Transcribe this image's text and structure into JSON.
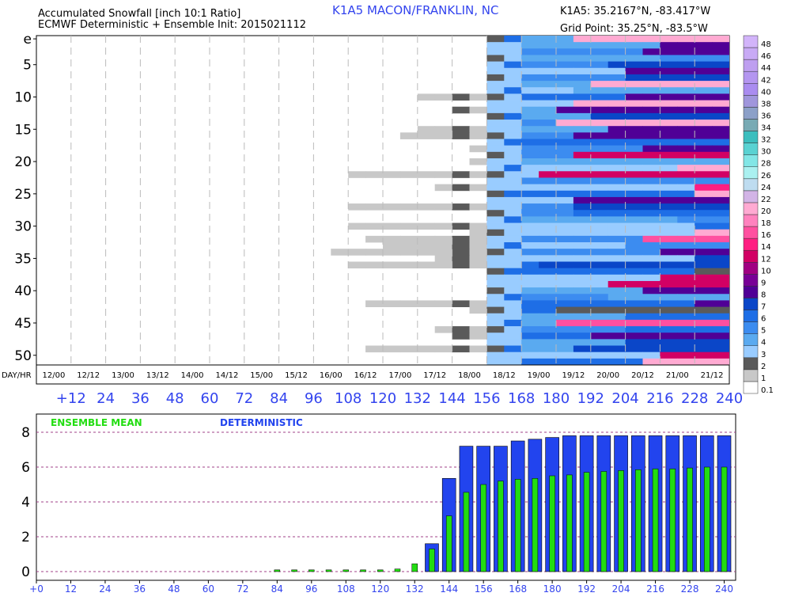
{
  "header": {
    "title": "Accumulated Snowfall [inch 10:1 Ratio]",
    "model_init": "ECMWF Deterministic + Ensemble Init: 2015021112",
    "station": "K1A5 MACON/FRANKLIN, NC",
    "station_location": "K1A5: 35.2167°N, -83.417°W",
    "grid_point": "Grid Point: 35.25°N, -83.5°W"
  },
  "chart_data": [
    {
      "type": "heatmap",
      "description_axes": "ensemble member vs forecast time",
      "y_label_positions": [
        "e",
        "5",
        "10",
        "15",
        "20",
        "25",
        "30",
        "35",
        "40",
        "45",
        "50"
      ],
      "members": 51,
      "x_day_hr_label": "DAY/HR",
      "x_day_labels": [
        "12/00",
        "12/12",
        "13/00",
        "13/12",
        "14/00",
        "14/12",
        "15/00",
        "15/12",
        "16/00",
        "16/12",
        "17/00",
        "17/12",
        "18/00",
        "18/12",
        "19/00",
        "19/12",
        "20/00",
        "20/12",
        "21/00",
        "21/12"
      ],
      "x_hour_labels": [
        "+12",
        "24",
        "36",
        "48",
        "60",
        "72",
        "84",
        "96",
        "108",
        "120",
        "132",
        "144",
        "156",
        "168",
        "180",
        "192",
        "204",
        "216",
        "228",
        "240"
      ],
      "colorbar": {
        "labels": [
          "0.1",
          "1",
          "2",
          "3",
          "4",
          "5",
          "6",
          "7",
          "8",
          "9",
          "10",
          "12",
          "14",
          "16",
          "18",
          "20",
          "22",
          "24",
          "26",
          "28",
          "30",
          "32",
          "34",
          "36",
          "38",
          "40",
          "42",
          "44",
          "46",
          "48"
        ],
        "colors": [
          "#ffffff",
          "#c8c8c8",
          "#5a5a5a",
          "#99ccff",
          "#5aaaf0",
          "#3c8cf0",
          "#1e6ee6",
          "#0a46c8",
          "#500096",
          "#780096",
          "#a00082",
          "#d20064",
          "#ff1e82",
          "#ff50a0",
          "#ff82be",
          "#ffaad2",
          "#d2b4e6",
          "#bedcf0",
          "#aaf0f0",
          "#82e6e6",
          "#5ad2d2",
          "#3cbebe",
          "#78aab4",
          "#8ca0c8",
          "#a096dc",
          "#aa8cf0",
          "#b496f0",
          "#be9ff0",
          "#c8aaf5",
          "#d2b4fa"
        ]
      }
    },
    {
      "type": "bar",
      "categories": [
        "+0",
        "12",
        "24",
        "36",
        "48",
        "60",
        "72",
        "84",
        "96",
        "108",
        "120",
        "132",
        "144",
        "156",
        "168",
        "180",
        "192",
        "204",
        "216",
        "228",
        "240"
      ],
      "category_values": [
        0,
        12,
        24,
        36,
        48,
        60,
        72,
        84,
        96,
        108,
        120,
        132,
        144,
        156,
        168,
        180,
        192,
        204,
        216,
        228,
        240
      ],
      "x": [
        84,
        90,
        96,
        102,
        108,
        114,
        120,
        126,
        132,
        138,
        144,
        150,
        156,
        162,
        168,
        174,
        180,
        186,
        192,
        198,
        204,
        210,
        216,
        222,
        228,
        234,
        240
      ],
      "series": [
        {
          "name": "ENSEMBLE MEAN",
          "color": "#22dd11",
          "values": [
            0.1,
            0.1,
            0.1,
            0.1,
            0.1,
            0.1,
            0.1,
            0.15,
            0.45,
            1.3,
            3.2,
            4.55,
            5.0,
            5.2,
            5.3,
            5.35,
            5.5,
            5.55,
            5.7,
            5.75,
            5.8,
            5.85,
            5.9,
            5.9,
            5.95,
            6.0,
            6.0
          ]
        },
        {
          "name": "DETERMINISTIC",
          "color": "#2244ee",
          "values": [
            0,
            0,
            0,
            0,
            0,
            0,
            0,
            0,
            0,
            1.6,
            5.35,
            7.2,
            7.2,
            7.2,
            7.5,
            7.6,
            7.7,
            7.8,
            7.8,
            7.8,
            7.8,
            7.8,
            7.8,
            7.8,
            7.8,
            7.8,
            7.8
          ]
        }
      ],
      "ylim": [
        0,
        8
      ],
      "y_ticks": [
        "0",
        "2",
        "4",
        "6",
        "8"
      ],
      "grid": true,
      "legend_placement": "top-left"
    }
  ]
}
